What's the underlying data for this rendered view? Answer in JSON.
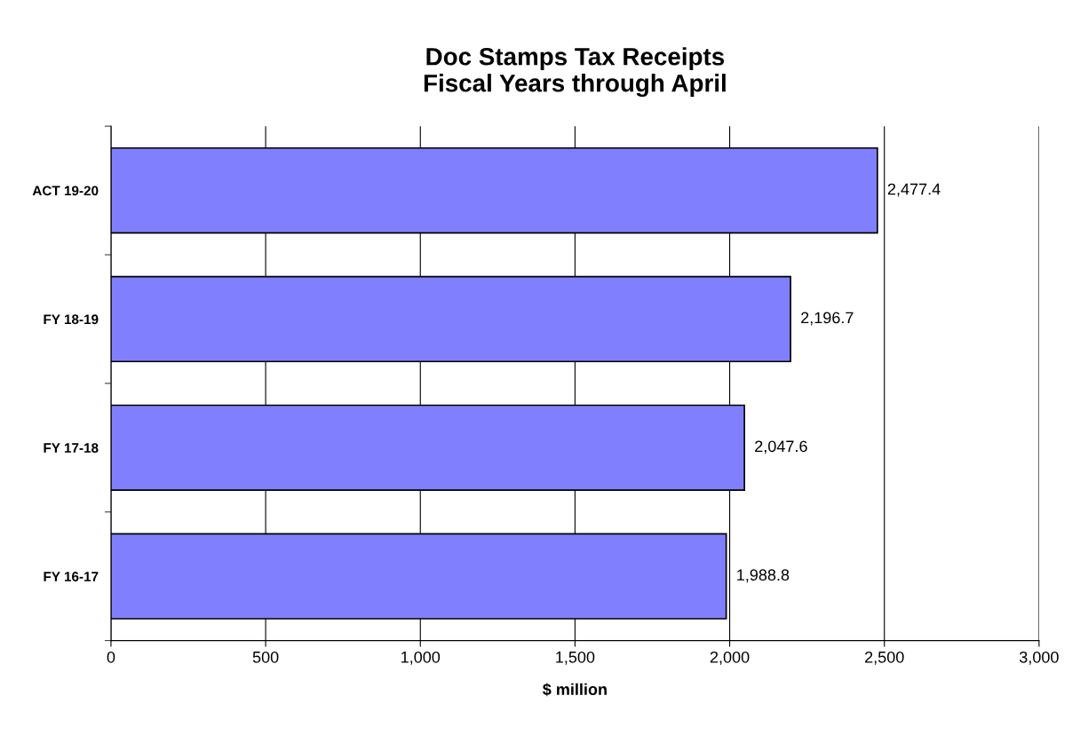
{
  "chart_data": {
    "type": "bar",
    "orientation": "horizontal",
    "title": "Doc Stamps Tax Receipts\nFiscal Years through April",
    "xlabel": "$ million",
    "categories": [
      "ACT 19-20",
      "FY 18-19",
      "FY 17-18",
      "FY 16-17"
    ],
    "values": [
      2477.4,
      2196.7,
      2047.6,
      1988.8
    ],
    "value_labels": [
      "2,477.4",
      "2,196.7",
      "2,047.6",
      "1,988.8"
    ],
    "color": "#8080ff",
    "xlim": [
      0,
      3000
    ],
    "xticks": [
      0,
      500,
      {
        "value": 1000,
        "label": "1,000"
      },
      {
        "value": 1500,
        "label": "1,500"
      },
      {
        "value": 2000,
        "label": "2,000"
      },
      {
        "value": 2500,
        "label": "2,500"
      },
      {
        "value": 3000,
        "label": "3,000"
      }
    ],
    "grid": "x"
  }
}
